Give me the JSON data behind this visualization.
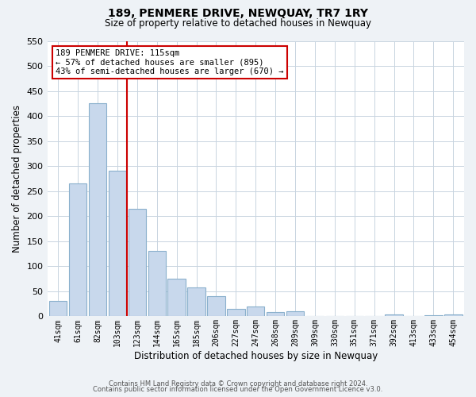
{
  "title": "189, PENMERE DRIVE, NEWQUAY, TR7 1RY",
  "subtitle": "Size of property relative to detached houses in Newquay",
  "xlabel": "Distribution of detached houses by size in Newquay",
  "ylabel": "Number of detached properties",
  "bar_labels": [
    "41sqm",
    "61sqm",
    "82sqm",
    "103sqm",
    "123sqm",
    "144sqm",
    "165sqm",
    "185sqm",
    "206sqm",
    "227sqm",
    "247sqm",
    "268sqm",
    "289sqm",
    "309sqm",
    "330sqm",
    "351sqm",
    "371sqm",
    "392sqm",
    "413sqm",
    "433sqm",
    "454sqm"
  ],
  "bar_values": [
    30,
    265,
    425,
    290,
    215,
    130,
    75,
    58,
    40,
    15,
    20,
    8,
    10,
    0,
    0,
    0,
    0,
    4,
    0,
    3,
    4
  ],
  "bar_color": "#c8d8ec",
  "bar_edgecolor": "#8ab0cc",
  "vline_color": "#cc0000",
  "annotation_title": "189 PENMERE DRIVE: 115sqm",
  "annotation_line1": "← 57% of detached houses are smaller (895)",
  "annotation_line2": "43% of semi-detached houses are larger (670) →",
  "annotation_box_edgecolor": "#cc0000",
  "ylim": [
    0,
    550
  ],
  "yticks": [
    0,
    50,
    100,
    150,
    200,
    250,
    300,
    350,
    400,
    450,
    500,
    550
  ],
  "footer_line1": "Contains HM Land Registry data © Crown copyright and database right 2024.",
  "footer_line2": "Contains public sector information licensed under the Open Government Licence v3.0.",
  "background_color": "#eef2f6",
  "plot_background_color": "#ffffff",
  "grid_color": "#c8d4e0"
}
